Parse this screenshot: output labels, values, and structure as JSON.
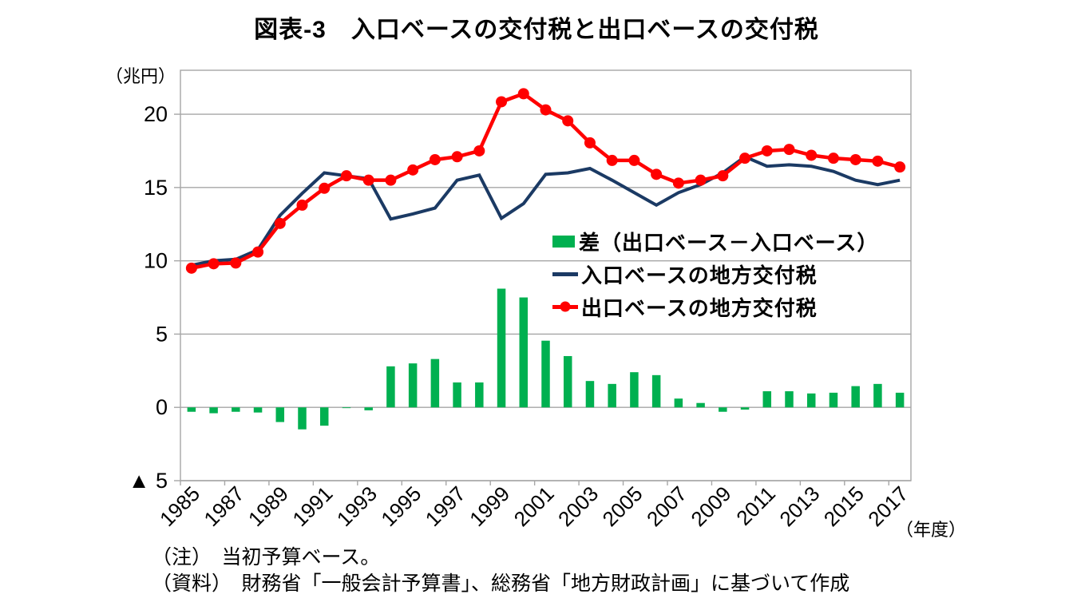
{
  "chart_data": {
    "type": "combo",
    "title": "図表-3　入口ベースの交付税と出口ベースの交付税",
    "y_axis": {
      "unit_label": "（兆円）",
      "min": -5,
      "max": 23,
      "ticks": [
        {
          "value": 20,
          "label": "20"
        },
        {
          "value": 15,
          "label": "15"
        },
        {
          "value": 10,
          "label": "10"
        },
        {
          "value": 5,
          "label": "5"
        },
        {
          "value": 0,
          "label": "0"
        },
        {
          "value": -5,
          "label": "▲ 5"
        }
      ]
    },
    "x_axis": {
      "unit_label": "（年度）",
      "label_interval": 2,
      "tick_labels": [
        "1985",
        "1987",
        "1989",
        "1991",
        "1993",
        "1995",
        "1997",
        "1999",
        "2001",
        "2003",
        "2005",
        "2007",
        "2009",
        "2011",
        "2013",
        "2015",
        "2017"
      ]
    },
    "categories": [
      1985,
      1986,
      1987,
      1988,
      1989,
      1990,
      1991,
      1992,
      1993,
      1994,
      1995,
      1996,
      1997,
      1998,
      1999,
      2000,
      2001,
      2002,
      2003,
      2004,
      2005,
      2006,
      2007,
      2008,
      2009,
      2010,
      2011,
      2012,
      2013,
      2014,
      2015,
      2016,
      2017
    ],
    "grid": true,
    "gridline_color": "#A6A6A6",
    "legend_position": "inside-middle-right",
    "series": [
      {
        "name": "差（出口ベース－入口ベース）",
        "type": "bar",
        "color": "#00B050",
        "values": [
          -0.3,
          -0.4,
          -0.3,
          -0.35,
          -1.0,
          -1.5,
          -1.25,
          -0.05,
          -0.2,
          2.8,
          3.0,
          3.3,
          1.7,
          1.7,
          8.1,
          7.5,
          4.55,
          3.5,
          1.8,
          1.6,
          2.4,
          2.2,
          0.6,
          0.3,
          -0.3,
          -0.15,
          1.1,
          1.1,
          0.95,
          1.0,
          1.45,
          1.6,
          1.0
        ]
      },
      {
        "name": "入口ベースの地方交付税",
        "type": "line",
        "color": "#1B3A64",
        "values": [
          9.7,
          10.0,
          10.1,
          10.75,
          13.1,
          14.6,
          16.0,
          15.8,
          15.6,
          12.85,
          13.2,
          13.6,
          15.5,
          15.85,
          12.9,
          13.9,
          15.9,
          16.0,
          16.3,
          15.5,
          14.65,
          13.8,
          14.65,
          15.2,
          16.0,
          17.1,
          16.45,
          16.55,
          16.45,
          16.1,
          15.5,
          15.2,
          15.5
        ]
      },
      {
        "name": "出口ベースの地方交付税",
        "type": "line-marker",
        "color": "#FF0000",
        "values": [
          9.5,
          9.8,
          9.85,
          10.6,
          12.55,
          13.8,
          14.95,
          15.8,
          15.5,
          15.5,
          16.2,
          16.9,
          17.1,
          17.5,
          20.85,
          21.4,
          20.3,
          19.55,
          18.05,
          16.85,
          16.85,
          15.9,
          15.3,
          15.5,
          15.8,
          17.0,
          17.5,
          17.6,
          17.2,
          17.0,
          16.9,
          16.8,
          16.4
        ]
      }
    ]
  },
  "notes": {
    "line1": "（注）　当初予算ベース。",
    "line2": "（資料）　財務省「一般会計予算書」、総務省「地方財政計画」に基づいて作成"
  }
}
